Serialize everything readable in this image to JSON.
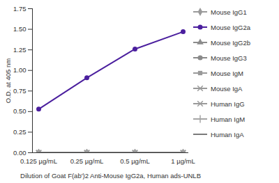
{
  "chart_data": {
    "type": "line",
    "xlabel": "Dilution of Goat F(ab')2 Anti-Mouse IgG2a, Human ads-UNLB",
    "ylabel": "O.D. at 405 nm",
    "categories": [
      "0.125 µg/mL",
      "0.25 µg/mL",
      "0.5 µg/mL",
      "1 µg/mL"
    ],
    "ylim": [
      0,
      1.75
    ],
    "yticks": [
      {
        "value": 0,
        "label": "0.00"
      },
      0.25,
      {
        "value": 0.5,
        "label": "0.50"
      },
      0.75,
      {
        "value": 1,
        "label": "1.00"
      },
      1.25,
      {
        "value": 1.5,
        "label": "1.50"
      },
      1.75
    ],
    "grid": false,
    "legend": "right",
    "series": [
      {
        "name": "Mouse IgG1",
        "color": "#9a9a9a",
        "marker": "diamond",
        "values": [
          0,
          0,
          0,
          0
        ]
      },
      {
        "name": "Mouse IgG2a",
        "color": "#4b1f9e",
        "marker": "circle",
        "values": [
          0.53,
          0.91,
          1.26,
          1.47
        ]
      },
      {
        "name": "Mouse IgG2b",
        "color": "#8c8c8c",
        "marker": "triangle",
        "values": [
          0,
          0,
          0,
          0
        ]
      },
      {
        "name": "Mouse IgG3",
        "color": "#8a8a8a",
        "marker": "circle",
        "values": [
          0,
          0,
          0,
          0
        ]
      },
      {
        "name": "Mouse IgM",
        "color": "#999999",
        "marker": "square",
        "values": [
          0,
          0,
          0,
          0
        ]
      },
      {
        "name": "Mouse IgA",
        "color": "#999999",
        "marker": "times",
        "values": [
          0,
          0,
          0,
          0
        ]
      },
      {
        "name": "Human IgG",
        "color": "#9a9a9a",
        "marker": "times",
        "values": [
          0,
          0,
          0,
          0
        ]
      },
      {
        "name": "Human IgM",
        "color": "#a5a5a5",
        "marker": "plus",
        "values": [
          0,
          0,
          0,
          0
        ]
      },
      {
        "name": "Human IgA",
        "color": "#7a7a7a",
        "marker": "none",
        "values": [
          0,
          0,
          0,
          0
        ]
      }
    ]
  }
}
